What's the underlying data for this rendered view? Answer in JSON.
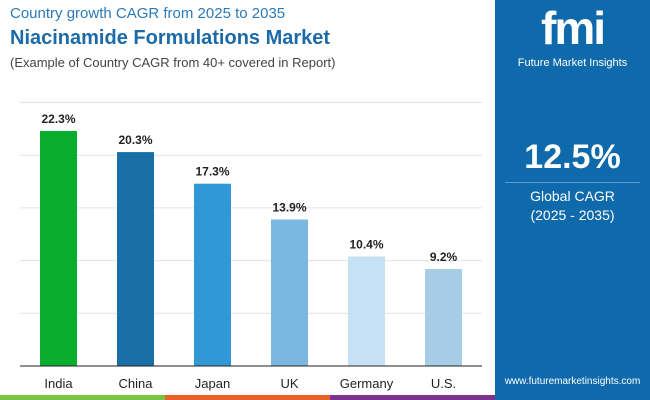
{
  "header": {
    "subtitle": "Country growth CAGR from 2025 to 2035",
    "title": "Niacinamide Formulations Market",
    "note": "(Example of Country CAGR from 40+ covered in Report)"
  },
  "panel": {
    "logo": "fmi",
    "logo_text": "Future Market Insights",
    "value": "12.5%",
    "label": "Global CAGR",
    "years": "(2025 - 2035)",
    "url": "www.futuremarketinsights.com",
    "bg": "#0f6aab"
  },
  "chart_data": {
    "type": "bar",
    "title": "",
    "xlabel": "",
    "ylabel": "",
    "categories": [
      "India",
      "China",
      "Japan",
      "UK",
      "Germany",
      "U.S."
    ],
    "values": [
      22.3,
      20.3,
      17.3,
      13.9,
      10.4,
      9.2
    ],
    "labels": [
      "22.3%",
      "20.3%",
      "17.3%",
      "13.9%",
      "10.4%",
      "9.2%"
    ],
    "colors": [
      "#0aae2e",
      "#1b6fa9",
      "#3198d6",
      "#7ab8e1",
      "#c5e1f3",
      "#a7cde6"
    ],
    "ylim": [
      0,
      25
    ],
    "grid": true
  }
}
